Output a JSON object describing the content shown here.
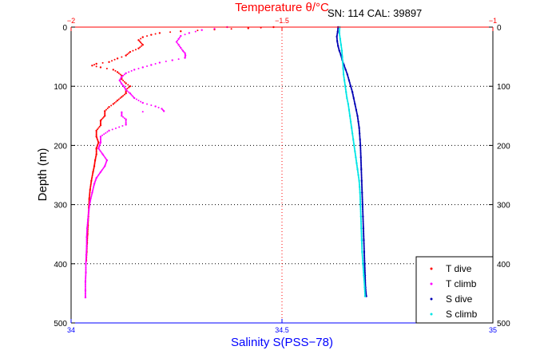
{
  "annotation": "SN: 114  CAL: 39897",
  "colors": {
    "t_dive": "#ff0000",
    "t_climb": "#ff00ff",
    "s_dive": "#0000b4",
    "s_climb": "#00e5e5",
    "salinity_axis": "#0000ff",
    "temperature_axis": "#ff0000",
    "grid": "#000000"
  },
  "chart_data": {
    "type": "scatter",
    "title": "",
    "xlabel": "Salinity S(PSS−78)",
    "x2label": "Temperature θ/°C",
    "ylabel": "Depth (m)",
    "xlim": [
      34,
      35
    ],
    "x2lim": [
      -2,
      -1
    ],
    "ylim": [
      500,
      0
    ],
    "y_reversed": true,
    "grid": true,
    "legend_position": "bottom-right",
    "xticks": [
      "34",
      "34.5",
      "35"
    ],
    "x2ticks": [
      "−2",
      "−1.5",
      "−1"
    ],
    "yticks": [
      "0",
      "100",
      "200",
      "300",
      "400",
      "500"
    ],
    "yticks_right": [
      "0",
      "100",
      "200",
      "300",
      "400",
      "500"
    ],
    "series": [
      {
        "name": "T dive",
        "axis": "temperature",
        "points": [
          [
            -1.52,
            0
          ],
          [
            -1.58,
            2
          ],
          [
            -1.66,
            4
          ],
          [
            -1.74,
            7
          ],
          [
            -1.79,
            10
          ],
          [
            -1.81,
            13
          ],
          [
            -1.83,
            17
          ],
          [
            -1.84,
            22
          ],
          [
            -1.83,
            30
          ],
          [
            -1.84,
            36
          ],
          [
            -1.86,
            42
          ],
          [
            -1.87,
            48
          ],
          [
            -1.89,
            53
          ],
          [
            -1.91,
            59
          ],
          [
            -1.94,
            62
          ],
          [
            -1.95,
            65
          ],
          [
            -1.93,
            68
          ],
          [
            -1.9,
            72
          ],
          [
            -1.89,
            76
          ],
          [
            -1.88,
            82
          ],
          [
            -1.88,
            88
          ],
          [
            -1.87,
            95
          ],
          [
            -1.86,
            100
          ],
          [
            -1.87,
            106
          ],
          [
            -1.87,
            112
          ],
          [
            -1.88,
            118
          ],
          [
            -1.89,
            124
          ],
          [
            -1.9,
            130
          ],
          [
            -1.91,
            135
          ],
          [
            -1.92,
            142
          ],
          [
            -1.92,
            150
          ],
          [
            -1.93,
            158
          ],
          [
            -1.93,
            166
          ],
          [
            -1.94,
            175
          ],
          [
            -1.94,
            185
          ],
          [
            -1.935,
            195
          ],
          [
            -1.94,
            205
          ],
          [
            -1.94,
            215
          ],
          [
            -1.943,
            225
          ],
          [
            -1.945,
            235
          ],
          [
            -1.948,
            245
          ],
          [
            -1.952,
            260
          ],
          [
            -1.955,
            275
          ],
          [
            -1.957,
            290
          ],
          [
            -1.958,
            305
          ],
          [
            -1.959,
            320
          ],
          [
            -1.96,
            335
          ],
          [
            -1.961,
            350
          ],
          [
            -1.962,
            365
          ],
          [
            -1.963,
            380
          ],
          [
            -1.964,
            395
          ]
        ]
      },
      {
        "name": "T climb",
        "axis": "temperature",
        "points": [
          [
            -1.63,
            0
          ],
          [
            -1.69,
            5
          ],
          [
            -1.72,
            10
          ],
          [
            -1.74,
            15
          ],
          [
            -1.745,
            20
          ],
          [
            -1.75,
            25
          ],
          [
            -1.745,
            30
          ],
          [
            -1.74,
            35
          ],
          [
            -1.735,
            40
          ],
          [
            -1.73,
            44
          ],
          [
            -1.729,
            48
          ],
          [
            -1.73,
            52
          ],
          [
            -1.76,
            56
          ],
          [
            -1.79,
            60
          ],
          [
            -1.81,
            64
          ],
          [
            -1.83,
            68
          ],
          [
            -1.85,
            72
          ],
          [
            -1.87,
            78
          ],
          [
            -1.88,
            84
          ],
          [
            -1.885,
            90
          ],
          [
            -1.88,
            96
          ],
          [
            -1.875,
            100
          ],
          [
            -1.87,
            106
          ],
          [
            -1.86,
            112
          ],
          [
            -1.85,
            120
          ],
          [
            -1.83,
            128
          ],
          [
            -1.8,
            134
          ],
          [
            -1.785,
            138
          ],
          [
            -1.78,
            142
          ],
          [
            -1.88,
            144
          ],
          [
            -1.88,
            150
          ],
          [
            -1.87,
            156
          ],
          [
            -1.87,
            165
          ],
          [
            -1.91,
            175
          ],
          [
            -1.93,
            185
          ],
          [
            -1.93,
            195
          ],
          [
            -1.935,
            205
          ],
          [
            -1.925,
            215
          ],
          [
            -1.915,
            225
          ],
          [
            -1.92,
            235
          ],
          [
            -1.93,
            245
          ],
          [
            -1.94,
            255
          ],
          [
            -1.945,
            265
          ],
          [
            -1.95,
            280
          ],
          [
            -1.955,
            295
          ],
          [
            -1.958,
            310
          ],
          [
            -1.96,
            325
          ],
          [
            -1.962,
            340
          ],
          [
            -1.963,
            355
          ],
          [
            -1.963,
            370
          ],
          [
            -1.964,
            385
          ],
          [
            -1.965,
            400
          ],
          [
            -1.965,
            415
          ],
          [
            -1.966,
            430
          ],
          [
            -1.966,
            445
          ],
          [
            -1.966,
            457
          ]
        ]
      },
      {
        "name": "S dive",
        "axis": "salinity",
        "points": [
          [
            34.633,
            0
          ],
          [
            34.632,
            8
          ],
          [
            34.63,
            16
          ],
          [
            34.631,
            24
          ],
          [
            34.633,
            32
          ],
          [
            34.636,
            40
          ],
          [
            34.64,
            48
          ],
          [
            34.643,
            56
          ],
          [
            34.647,
            64
          ],
          [
            34.651,
            72
          ],
          [
            34.655,
            80
          ],
          [
            34.659,
            90
          ],
          [
            34.663,
            100
          ],
          [
            34.667,
            110
          ],
          [
            34.67,
            120
          ],
          [
            34.673,
            130
          ],
          [
            34.676,
            140
          ],
          [
            34.679,
            150
          ],
          [
            34.681,
            160
          ],
          [
            34.683,
            170
          ],
          [
            34.684,
            180
          ],
          [
            34.685,
            190
          ],
          [
            34.686,
            200
          ],
          [
            34.687,
            220
          ],
          [
            34.688,
            240
          ],
          [
            34.689,
            260
          ],
          [
            34.69,
            280
          ],
          [
            34.691,
            300
          ],
          [
            34.692,
            320
          ],
          [
            34.693,
            340
          ],
          [
            34.694,
            360
          ],
          [
            34.695,
            380
          ],
          [
            34.696,
            400
          ],
          [
            34.697,
            420
          ],
          [
            34.698,
            440
          ],
          [
            34.7,
            455
          ]
        ]
      },
      {
        "name": "S climb",
        "axis": "salinity",
        "points": [
          [
            34.637,
            0
          ],
          [
            34.636,
            10
          ],
          [
            34.638,
            20
          ],
          [
            34.64,
            30
          ],
          [
            34.642,
            40
          ],
          [
            34.643,
            50
          ],
          [
            34.644,
            60
          ],
          [
            34.645,
            70
          ],
          [
            34.646,
            80
          ],
          [
            34.648,
            90
          ],
          [
            34.65,
            100
          ],
          [
            34.652,
            110
          ],
          [
            34.654,
            120
          ],
          [
            34.657,
            130
          ],
          [
            34.659,
            140
          ],
          [
            34.661,
            150
          ],
          [
            34.663,
            160
          ],
          [
            34.665,
            170
          ],
          [
            34.667,
            180
          ],
          [
            34.669,
            190
          ],
          [
            34.671,
            200
          ],
          [
            34.673,
            210
          ],
          [
            34.675,
            220
          ],
          [
            34.677,
            230
          ],
          [
            34.679,
            240
          ],
          [
            34.681,
            250
          ],
          [
            34.683,
            260
          ],
          [
            34.684,
            270
          ],
          [
            34.685,
            280
          ],
          [
            34.686,
            300
          ],
          [
            34.687,
            320
          ],
          [
            34.688,
            340
          ],
          [
            34.689,
            360
          ],
          [
            34.69,
            380
          ],
          [
            34.692,
            400
          ],
          [
            34.694,
            420
          ],
          [
            34.696,
            440
          ],
          [
            34.697,
            455
          ]
        ]
      }
    ]
  }
}
